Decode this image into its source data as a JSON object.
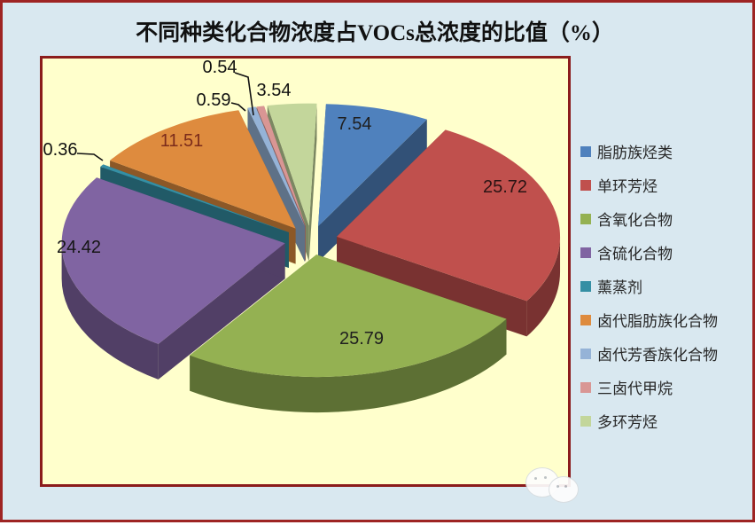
{
  "title": "不同种类化合物浓度占VOCs总浓度的比值（%）",
  "chart_data": {
    "type": "pie",
    "style": "3d-exploded",
    "title": "不同种类化合物浓度占VOCs总浓度的比值（%）",
    "unit": "%",
    "legend_position": "right",
    "start_angle_deg": -90,
    "direction": "clockwise",
    "categories": [
      "脂肪族烃类",
      "单环芳烃",
      "含氧化合物",
      "含硫化合物",
      "薰蒸剂",
      "卤代脂肪族化合物",
      "卤代芳香族化合物",
      "三卤代甲烷",
      "多环芳烃"
    ],
    "values": [
      7.54,
      25.72,
      25.79,
      24.42,
      0.36,
      11.51,
      0.59,
      0.54,
      3.54
    ],
    "data_labels": [
      "7.54",
      "25.72",
      "25.79",
      "24.42",
      "0.36",
      "11.51",
      "0.59",
      "0.54",
      "3.54"
    ],
    "colors": [
      "#4F81BD",
      "#C0504D",
      "#94B152",
      "#8064A2",
      "#358FA4",
      "#DE8B3E",
      "#95B3D7",
      "#D99694",
      "#C3D69B"
    ],
    "data_label_colors": [
      "#1f1f1f",
      "#2a1414",
      "#1f1f1f",
      "#161616",
      "#111111",
      "#7b2b1b",
      "#111111",
      "#111111",
      "#111111"
    ]
  },
  "colors": {
    "page_background": "#d9e8f0",
    "page_border": "#9e2423",
    "plot_background": "#ffffcc",
    "plot_border": "#8b1c1c",
    "title_color": "#111111",
    "legend_text": "#262626"
  }
}
